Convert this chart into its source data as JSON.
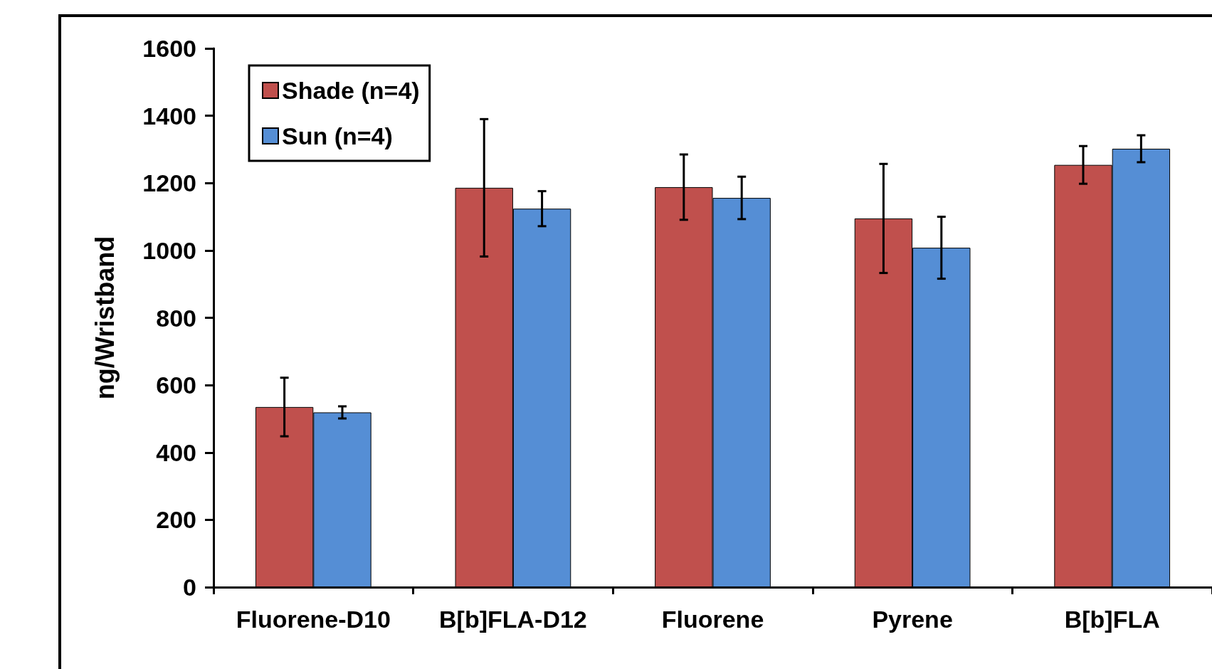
{
  "chart_data": {
    "type": "bar",
    "ylabel": "ng/Wristband",
    "categories": [
      "Fluorene-D10",
      "B[b]FLA-D12",
      "Fluorene",
      "Pyrene",
      "B[b]FLA"
    ],
    "series": [
      {
        "name": "Shade (n=4)",
        "color": "#c0504d",
        "values": [
          535,
          1186,
          1188,
          1095,
          1254
        ],
        "errors": [
          87,
          204,
          97,
          162,
          56
        ]
      },
      {
        "name": "Sun (n=4)",
        "color": "#558ed5",
        "values": [
          519,
          1124,
          1156,
          1008,
          1302
        ],
        "errors": [
          18,
          52,
          63,
          92,
          40
        ]
      }
    ],
    "ylim": [
      0,
      1600
    ],
    "yticks": [
      0,
      200,
      400,
      600,
      800,
      1000,
      1200,
      1400,
      1600
    ],
    "grid": false,
    "legend": "top left"
  }
}
